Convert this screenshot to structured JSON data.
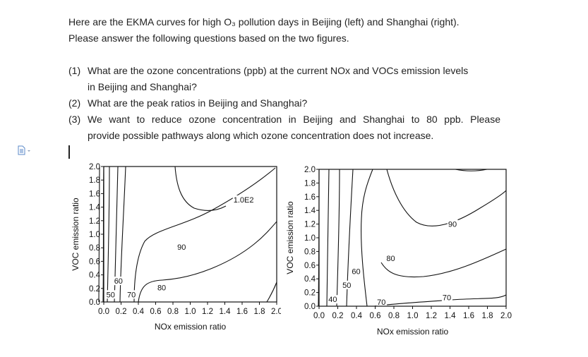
{
  "intro": {
    "line1": "Here are the EKMA curves for high O₃ pollution days in Beijing (left) and Shanghai (right).",
    "line2": "Please answer the following questions based on the two figures."
  },
  "questions": [
    {
      "num": "(1)",
      "lines": [
        "What are the ozone concentrations (ppb) at the current NOx and VOCs emission levels",
        "in Beijing and Shanghai?"
      ]
    },
    {
      "num": "(2)",
      "lines": [
        "What are the peak ratios in Beijing and Shanghai?"
      ]
    },
    {
      "num": "(3)",
      "lines": [
        "We want to reduce ozone concentration in Beijing and Shanghai to 80 ppb. Please",
        "provide possible pathways along which ozone concentration does not increase."
      ]
    }
  ],
  "icons": {
    "doc": "document-icon"
  },
  "chart_data": [
    {
      "type": "contour",
      "xlabel": "NOx emission ratio",
      "ylabel": "VOC emission ratio",
      "xlim": [
        0.0,
        2.0
      ],
      "ylim": [
        0.0,
        2.0
      ],
      "x_ticks": [
        "0.0",
        "0.2",
        "0.4",
        "0.6",
        "0.8",
        "1.0",
        "1.2",
        "1.4",
        "1.6",
        "1.8",
        "2.0"
      ],
      "y_ticks": [
        "0.0",
        "0.2",
        "0.4",
        "0.6",
        "0.8",
        "1.0",
        "1.2",
        "1.4",
        "1.6",
        "1.8",
        "2.0"
      ],
      "contour_labels": [
        {
          "text": "50",
          "x": 0.03,
          "y": 0.08
        },
        {
          "text": "60",
          "x": 0.12,
          "y": 0.28
        },
        {
          "text": "70",
          "x": 0.27,
          "y": 0.08
        },
        {
          "text": "80",
          "x": 0.62,
          "y": 0.18
        },
        {
          "text": "90",
          "x": 0.85,
          "y": 0.78
        },
        {
          "text": "1.0E2",
          "x": 1.5,
          "y": 1.48
        }
      ]
    },
    {
      "type": "contour",
      "xlabel": "NOx emission ratio",
      "ylabel": "VOC emission ratio",
      "xlim": [
        0.0,
        2.0
      ],
      "ylim": [
        0.0,
        2.0
      ],
      "x_ticks": [
        "0.0",
        "0.2",
        "0.4",
        "0.6",
        "0.8",
        "1.0",
        "1.2",
        "1.4",
        "1.6",
        "1.8",
        "2.0"
      ],
      "y_ticks": [
        "0.0",
        "0.2",
        "0.4",
        "0.6",
        "0.8",
        "1.0",
        "1.2",
        "1.4",
        "1.6",
        "1.8",
        "2.0"
      ],
      "contour_labels": [
        {
          "text": "40",
          "x": 0.1,
          "y": 0.07
        },
        {
          "text": "50",
          "x": 0.25,
          "y": 0.28
        },
        {
          "text": "60",
          "x": 0.35,
          "y": 0.48
        },
        {
          "text": "70",
          "x": 0.62,
          "y": 0.03
        },
        {
          "text": "70",
          "x": 1.32,
          "y": 0.1
        },
        {
          "text": "80",
          "x": 0.72,
          "y": 0.67
        },
        {
          "text": "90",
          "x": 1.38,
          "y": 1.17
        }
      ]
    }
  ]
}
